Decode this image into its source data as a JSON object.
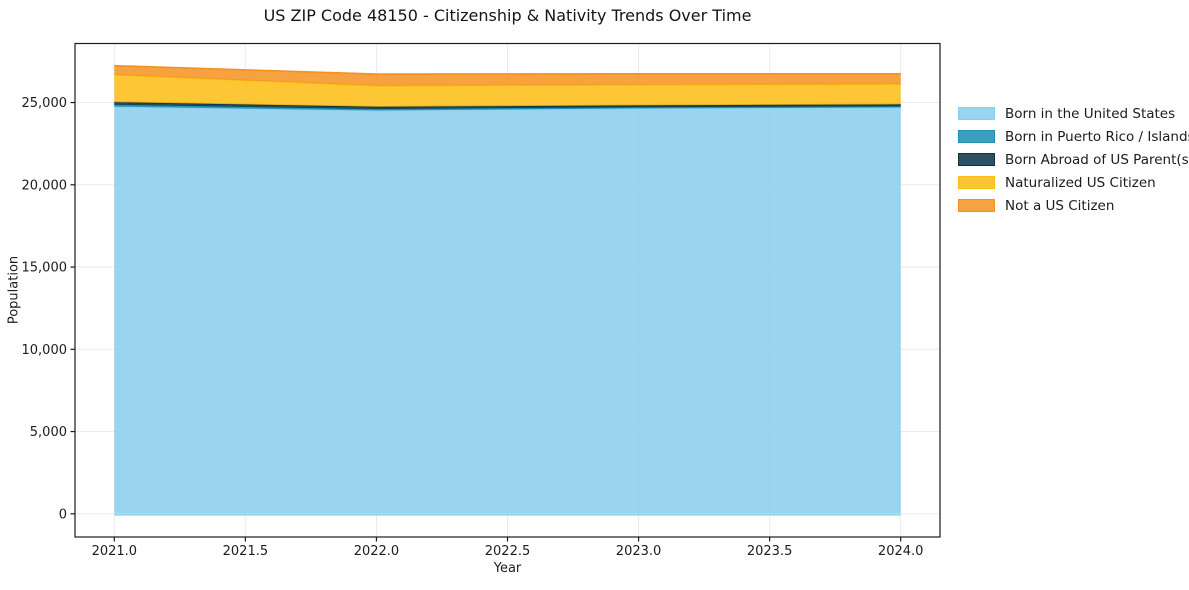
{
  "chart_data": {
    "type": "area",
    "stacked": true,
    "title": "US ZIP Code 48150 - Citizenship & Nativity Trends Over Time",
    "xlabel": "Year",
    "ylabel": "Population",
    "x": [
      2021,
      2022,
      2023,
      2024
    ],
    "series": [
      {
        "id": "born-us",
        "name": "Born in the United States",
        "color": "#87CEEB",
        "values": [
          24750,
          24520,
          24640,
          24700
        ]
      },
      {
        "id": "born-pr",
        "name": "Born in Puerto Rico / Islands",
        "color": "#1B8EB4",
        "values": [
          120,
          90,
          80,
          70
        ]
      },
      {
        "id": "born-abroad",
        "name": "Born Abroad of US Parent(s)",
        "color": "#0A3047",
        "values": [
          150,
          130,
          110,
          120
        ]
      },
      {
        "id": "naturalized",
        "name": "Naturalized US Citizen",
        "color": "#FBBC10",
        "values": [
          1670,
          1280,
          1250,
          1230
        ]
      },
      {
        "id": "not-citizen",
        "name": "Not a US Citizen",
        "color": "#F5921E",
        "values": [
          550,
          710,
          670,
          630
        ]
      }
    ],
    "fill_alpha": 0.85,
    "xlim": [
      2020.85,
      2024.15
    ],
    "ylim": [
      -1410,
      28590
    ],
    "grid": true,
    "grid_color": "#EBEBEB",
    "axis_color": "#1a1a1a",
    "tick_label_color": "#1c1c1c",
    "legend_position": "center right, outside",
    "x_ticks": {
      "values": [
        2021,
        2021.5,
        2022,
        2022.5,
        2023,
        2023.5,
        2024
      ],
      "labels": [
        "2021.0",
        "2021.5",
        "2022.0",
        "2022.5",
        "2023.0",
        "2023.5",
        "2024.0"
      ]
    },
    "y_ticks": {
      "values": [
        0,
        5000,
        10000,
        15000,
        20000,
        25000
      ],
      "labels": [
        "0",
        "5,000",
        "10,000",
        "15,000",
        "20,000",
        "25,000"
      ]
    }
  }
}
